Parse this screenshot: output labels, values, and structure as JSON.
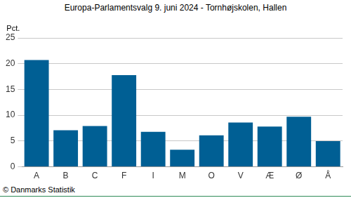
{
  "chart_data": {
    "type": "bar",
    "title": "Europa-Parlamentsvalg 9. juni 2024 - Tornhøjskolen, Hallen",
    "ylabel": "Pct.",
    "annotations": [
      "© Danmarks Statistik"
    ],
    "categories": [
      "A",
      "B",
      "C",
      "F",
      "I",
      "M",
      "O",
      "V",
      "Æ",
      "Ø",
      "Å"
    ],
    "values": [
      20.7,
      7.1,
      7.9,
      17.8,
      6.8,
      3.3,
      6.1,
      8.6,
      7.8,
      9.7,
      5.0
    ],
    "color": "#005f94",
    "ylim": [
      0,
      25
    ],
    "yticks": [
      0,
      5,
      10,
      15,
      20,
      25
    ],
    "grid": true
  }
}
